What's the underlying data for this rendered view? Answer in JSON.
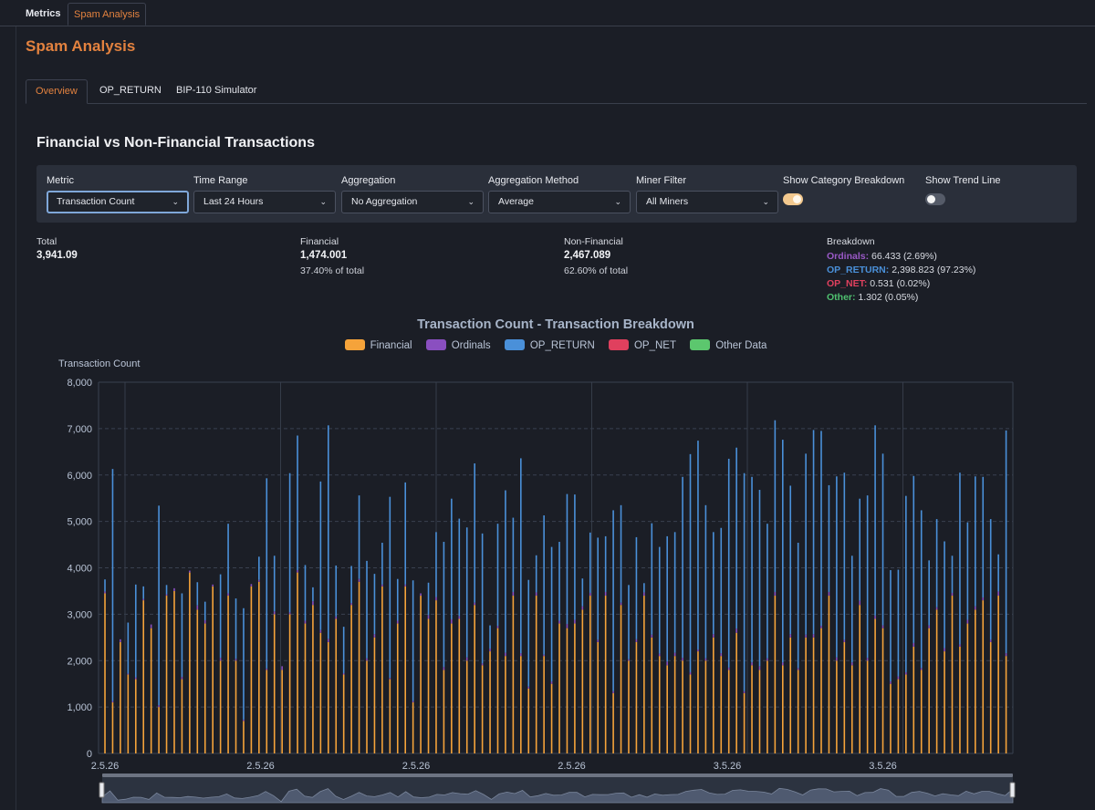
{
  "top_tabs": [
    {
      "label": "Metrics"
    },
    {
      "label": "Spam Analysis"
    }
  ],
  "page_title": "Spam Analysis",
  "sub_tabs": [
    {
      "label": "Overview"
    },
    {
      "label": "OP_RETURN"
    },
    {
      "label": "BIP-110 Simulator"
    }
  ],
  "section_title": "Financial vs Non-Financial Transactions",
  "controls": {
    "metric": {
      "label": "Metric",
      "value": "Transaction Count"
    },
    "time_range": {
      "label": "Time Range",
      "value": "Last 24 Hours"
    },
    "aggregation": {
      "label": "Aggregation",
      "value": "No Aggregation"
    },
    "aggregation_method": {
      "label": "Aggregation Method",
      "value": "Average"
    },
    "miner_filter": {
      "label": "Miner Filter",
      "value": "All Miners"
    },
    "category_breakdown": {
      "label": "Show Category Breakdown",
      "on": true
    },
    "trend_line": {
      "label": "Show Trend Line",
      "on": false
    }
  },
  "stats": {
    "total": {
      "label": "Total",
      "value": "3,941.09"
    },
    "financial": {
      "label": "Financial",
      "value": "1,474.001",
      "pct": "37.40% of total"
    },
    "non_financial": {
      "label": "Non-Financial",
      "value": "2,467.089",
      "pct": "62.60% of total"
    },
    "breakdown": {
      "label": "Breakdown",
      "items": [
        {
          "name": "Ordinals:",
          "value": "66.433 (2.69%)",
          "color": "#9a59c6"
        },
        {
          "name": "OP_RETURN:",
          "value": "2,398.823 (97.23%)",
          "color": "#4a90d9"
        },
        {
          "name": "OP_NET:",
          "value": "0.531 (0.02%)",
          "color": "#e0405e"
        },
        {
          "name": "Other:",
          "value": "1.302 (0.05%)",
          "color": "#4fc06f"
        }
      ]
    }
  },
  "colors": {
    "accent": "#e3823f",
    "financial": "#f5a33a",
    "ordinals": "#8a4fc0",
    "op_return": "#4a90d9",
    "op_net": "#e0405e",
    "other": "#5cc76e"
  },
  "chart_data": {
    "type": "bar",
    "stacked": true,
    "title": "Transaction Count - Transaction Breakdown",
    "ylabel": "Transaction Count",
    "ylim": [
      0,
      8000
    ],
    "yticks": [
      "0",
      "1,000",
      "2,000",
      "3,000",
      "4,000",
      "5,000",
      "6,000",
      "7,000",
      "8,000"
    ],
    "xticks": [
      "2.5.26",
      "2.5.26",
      "2.5.26",
      "2.5.26",
      "3.5.26",
      "3.5.26"
    ],
    "legend_position": "top",
    "grid": true,
    "legend": [
      {
        "name": "Financial",
        "color": "#f5a33a"
      },
      {
        "name": "Ordinals",
        "color": "#8a4fc0"
      },
      {
        "name": "OP_RETURN",
        "color": "#4a90d9"
      },
      {
        "name": "OP_NET",
        "color": "#e0405e"
      },
      {
        "name": "Other Data",
        "color": "#5cc76e"
      }
    ],
    "series": [
      {
        "name": "Financial",
        "values": [
          3450,
          1100,
          2400,
          1700,
          1600,
          3300,
          2700,
          1000,
          3400,
          3500,
          1600,
          3900,
          3100,
          2800,
          3600,
          2000,
          3400,
          2000,
          700,
          3600,
          3700,
          1800,
          3000,
          1800,
          3000,
          3900,
          2800,
          3200,
          2600,
          2400,
          2900,
          1700,
          3200,
          3700,
          2000,
          2500,
          3600,
          1600,
          2800,
          3600,
          1100,
          3400,
          2900,
          3300,
          1800,
          2800,
          2900,
          2000,
          3200,
          1900,
          2200,
          2700,
          2100,
          3400,
          2100,
          1400,
          3400,
          2100,
          1500,
          2800,
          2700,
          2800,
          3100,
          3400,
          2400,
          3400,
          1300,
          3200,
          2000,
          2400,
          3400,
          2500,
          2100,
          1900,
          2100,
          2000,
          1700,
          2200,
          2000,
          2500,
          2100,
          1800,
          2600,
          1300,
          1900,
          1800,
          2000,
          3400,
          1900,
          2500,
          1800,
          2500,
          2500,
          2700,
          3400,
          2000,
          2400,
          1900,
          3200,
          2000,
          2900,
          2700,
          1500,
          1600,
          1700,
          2300,
          1800,
          2700,
          3100,
          2200,
          3400,
          2300,
          2800,
          3100,
          3300,
          2400,
          3400,
          2100
        ]
      },
      {
        "name": "Ordinals",
        "values": [
          40,
          30,
          60,
          20,
          40,
          30,
          80,
          40,
          30,
          60,
          50,
          40,
          90,
          70,
          40,
          60,
          50,
          40,
          30,
          50,
          40,
          30,
          60,
          80,
          40,
          50,
          60,
          80,
          60,
          70,
          50,
          30,
          40,
          60,
          50,
          70,
          40,
          30,
          60,
          40,
          30,
          50,
          80,
          70,
          60,
          90,
          60,
          70,
          50,
          40,
          60,
          50,
          70,
          80,
          60,
          40,
          70,
          30,
          50,
          60,
          90,
          80,
          70,
          60,
          50,
          80,
          40,
          50,
          30,
          60,
          70,
          60,
          50,
          80,
          70,
          60,
          50,
          40,
          50,
          70,
          60,
          50,
          90,
          40,
          60,
          80,
          50,
          80,
          60,
          70,
          40,
          60,
          70,
          50,
          80,
          70,
          50,
          60,
          90,
          60,
          70,
          60,
          50,
          60,
          50,
          80,
          40,
          60,
          50,
          70,
          60,
          50,
          80,
          70,
          60,
          50,
          90,
          60
        ]
      },
      {
        "name": "OP_RETURN",
        "values": [
          260,
          5000,
          0,
          1100,
          2000,
          270,
          0,
          4300,
          200,
          0,
          1800,
          0,
          500,
          400,
          0,
          1800,
          1500,
          1300,
          2400,
          0,
          500,
          4100,
          1200,
          0,
          3000,
          2900,
          1200,
          300,
          3200,
          4600,
          1100,
          1000,
          800,
          1800,
          2100,
          1300,
          900,
          3900,
          900,
          2200,
          2600,
          0,
          700,
          1400,
          2700,
          2600,
          2100,
          2800,
          3000,
          2800,
          500,
          2200,
          3500,
          1600,
          4200,
          2300,
          800,
          3000,
          2900,
          1700,
          2800,
          2700,
          600,
          1300,
          2200,
          1200,
          3900,
          2100,
          1600,
          2200,
          200,
          2400,
          2300,
          2700,
          2600,
          3900,
          4700,
          4500,
          3300,
          2200,
          2700,
          4500,
          3900,
          4700,
          4000,
          3800,
          2900,
          3700,
          4800,
          3200,
          2700,
          3900,
          4400,
          4200,
          2300,
          3900,
          3600,
          2300,
          2200,
          3500,
          4100,
          3700,
          2400,
          2300,
          3800,
          3600,
          3400,
          1400,
          1900,
          2300,
          800,
          3700,
          2100,
          2800,
          2600,
          2600,
          800,
          4800
        ]
      },
      {
        "name": "OP_NET",
        "values": [
          0,
          0,
          0,
          0,
          0,
          0,
          0,
          0,
          0,
          0,
          0,
          0,
          0,
          0,
          0,
          0,
          0,
          0,
          0,
          0,
          0,
          0,
          0,
          0,
          0,
          0,
          0,
          0,
          0,
          0,
          0,
          0,
          0,
          0,
          0,
          0,
          0,
          0,
          0,
          0,
          0,
          0,
          0,
          0,
          0,
          0,
          0,
          0,
          0,
          0,
          0,
          0,
          0,
          0,
          0,
          0,
          0,
          0,
          0,
          0,
          0,
          0,
          0,
          0,
          0,
          0,
          0,
          0,
          0,
          0,
          0,
          0,
          0,
          0,
          0,
          0,
          0,
          0,
          0,
          0,
          0,
          0,
          0,
          0,
          0,
          0,
          0,
          0,
          0,
          0,
          0,
          0,
          0,
          0,
          0,
          0,
          0,
          0,
          0,
          0,
          0,
          0,
          0,
          0,
          0,
          0,
          0,
          0,
          0,
          0,
          0,
          0,
          0,
          0,
          0,
          0,
          0,
          0
        ]
      },
      {
        "name": "Other Data",
        "values": [
          0,
          0,
          0,
          0,
          0,
          0,
          0,
          0,
          0,
          0,
          0,
          0,
          0,
          0,
          0,
          0,
          0,
          0,
          0,
          0,
          0,
          0,
          0,
          0,
          0,
          0,
          0,
          0,
          0,
          0,
          0,
          0,
          0,
          0,
          0,
          0,
          0,
          0,
          0,
          0,
          0,
          0,
          0,
          0,
          0,
          0,
          0,
          0,
          0,
          0,
          0,
          0,
          0,
          0,
          0,
          0,
          0,
          0,
          0,
          0,
          0,
          0,
          0,
          0,
          0,
          0,
          0,
          0,
          0,
          0,
          0,
          0,
          0,
          0,
          0,
          0,
          0,
          0,
          0,
          0,
          0,
          0,
          0,
          0,
          0,
          0,
          0,
          0,
          0,
          0,
          0,
          0,
          0,
          0,
          0,
          0,
          0,
          0,
          0,
          0,
          0,
          0,
          0,
          0,
          0,
          0,
          0,
          0,
          0,
          0,
          0,
          0,
          0,
          0,
          0,
          0,
          0,
          0
        ]
      }
    ]
  }
}
